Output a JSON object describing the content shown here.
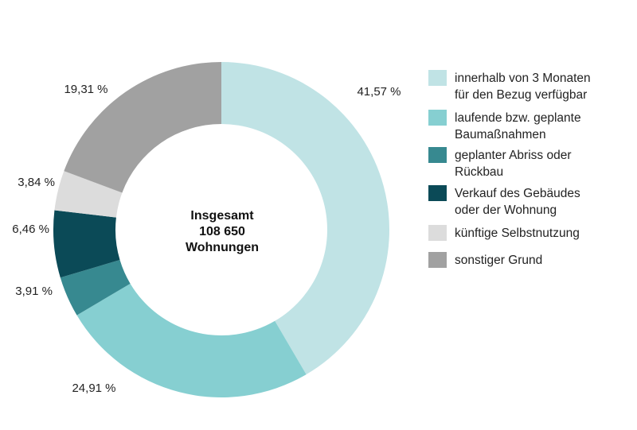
{
  "chart_data": {
    "type": "pie",
    "donut": true,
    "center_label": [
      "Insgesamt",
      "108 650",
      "Wohnungen"
    ],
    "slices": [
      {
        "name": "innerhalb von 3 Monaten für den Bezug verfügbar",
        "legend_lines": [
          "innerhalb von 3 Monaten",
          "für den Bezug verfügbar"
        ],
        "value": 41.57,
        "label": "41,57 %",
        "color": "#c0e3e5"
      },
      {
        "name": "laufende bzw. geplante Baumaßnahmen",
        "legend_lines": [
          "laufende bzw. geplante",
          "Baumaßnahmen"
        ],
        "value": 24.91,
        "label": "24,91 %",
        "color": "#86cfd1"
      },
      {
        "name": "geplanter Abriss oder Rückbau",
        "legend_lines": [
          "geplanter Abriss oder",
          "Rückbau"
        ],
        "value": 3.91,
        "label": "3,91 %",
        "color": "#378990"
      },
      {
        "name": "Verkauf des Gebäudes oder der Wohnung",
        "legend_lines": [
          "Verkauf des Gebäudes",
          "oder der Wohnung"
        ],
        "value": 6.46,
        "label": "6,46 %",
        "color": "#0b4a57"
      },
      {
        "name": "künftige Selbstnutzung",
        "legend_lines": [
          "künftige Selbstnutzung"
        ],
        "value": 3.84,
        "label": "3,84 %",
        "color": "#dcdcdc"
      },
      {
        "name": "sonstiger Grund",
        "legend_lines": [
          "sonstiger Grund"
        ],
        "value": 19.31,
        "label": "19,31 %",
        "color": "#a1a1a1"
      }
    ],
    "start": "12 o'clock",
    "direction": "clockwise",
    "legend_position": "right"
  }
}
